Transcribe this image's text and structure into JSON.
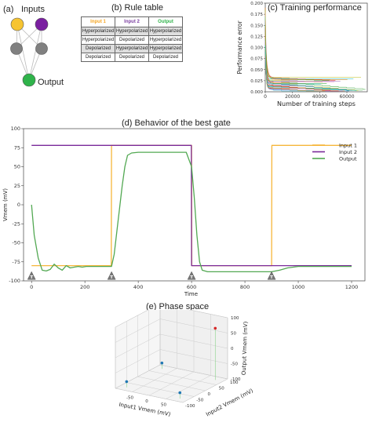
{
  "panels": {
    "a": {
      "label": "(a)",
      "inputs_label": "Inputs",
      "output_label": "Output",
      "colors": {
        "input1": "#f6c431",
        "input2": "#7a1fa0",
        "hidden": "#808080",
        "output": "#2fb34a"
      }
    },
    "b": {
      "label": "(b) Rule table",
      "headers": [
        "Input 1",
        "Input 2",
        "Output"
      ],
      "header_colors": [
        "#f5a623",
        "#7b3fa0",
        "#2fb34a"
      ],
      "rows": [
        [
          "Hyperpolarized",
          "Hyperpolarized",
          "Hyperpolarized"
        ],
        [
          "Hyperpolarized",
          "Depolarized",
          "Hyperpolarized"
        ],
        [
          "Depolarized",
          "Hyperpolarized",
          "Hyperpolarized"
        ],
        [
          "Depolarized",
          "Depolarized",
          "Depolarized"
        ]
      ]
    },
    "c": {
      "label": "(c) Training performance"
    },
    "d": {
      "label": "(d) Behavior of the best gate"
    },
    "e": {
      "label": "(e) Phase space"
    }
  },
  "chart_data": [
    {
      "id": "training",
      "type": "line",
      "xlabel": "Number of training steps",
      "ylabel": "Performance error",
      "xlim": [
        0,
        75000
      ],
      "ylim": [
        0,
        0.2
      ],
      "xticks": [
        0,
        20000,
        40000,
        60000
      ],
      "yticks": [
        0.0,
        0.025,
        0.05,
        0.075,
        0.1,
        0.125,
        0.15,
        0.175,
        0.2
      ],
      "series_colors": [
        "#e377c2",
        "#2ca02c",
        "#bcbd22",
        "#17becf",
        "#1f77b4",
        "#ff7f0e",
        "#9467bd",
        "#d62728"
      ]
    },
    {
      "id": "behavior",
      "type": "line",
      "xlabel": "Time",
      "ylabel": "Vmem (mV)",
      "xlim": [
        -30,
        1250
      ],
      "ylim": [
        -100,
        100
      ],
      "xticks": [
        0,
        200,
        400,
        600,
        800,
        1000,
        1200
      ],
      "yticks": [
        -100,
        -75,
        -50,
        -25,
        0,
        25,
        50,
        75,
        100
      ],
      "legend_position": "right",
      "event_markers": [
        0,
        300,
        600,
        900
      ],
      "event_label": "T",
      "series": [
        {
          "name": "Input 1",
          "color": "#f6b63a",
          "x": [
            0,
            299,
            300,
            600,
            601,
            900,
            901,
            1200
          ],
          "y": [
            -80,
            -80,
            78,
            78,
            -80,
            -80,
            78,
            78
          ]
        },
        {
          "name": "Input 2",
          "color": "#7a2a9a",
          "x": [
            0,
            599,
            600,
            1200
          ],
          "y": [
            78,
            78,
            -80,
            -80
          ]
        },
        {
          "name": "Output",
          "color": "#52a852",
          "x": [
            0,
            10,
            25,
            40,
            55,
            70,
            85,
            100,
            115,
            130,
            145,
            160,
            175,
            190,
            205,
            220,
            240,
            260,
            280,
            300,
            310,
            320,
            330,
            340,
            350,
            360,
            375,
            400,
            500,
            580,
            600,
            610,
            620,
            630,
            640,
            660,
            700,
            900,
            930,
            960,
            1000,
            1200
          ],
          "y": [
            0,
            -40,
            -70,
            -86,
            -87,
            -85,
            -78,
            -83,
            -86,
            -80,
            -83,
            -82,
            -81,
            -82,
            -81,
            -81,
            -81,
            -81,
            -81,
            -81,
            -65,
            -35,
            -5,
            25,
            50,
            65,
            68,
            69,
            69,
            69,
            50,
            10,
            -40,
            -75,
            -86,
            -88,
            -88,
            -88,
            -86,
            -83,
            -81,
            -81
          ]
        }
      ]
    },
    {
      "id": "phase",
      "type": "scatter",
      "xlabel": "Input1 Vmem (mV)",
      "ylabel": "Input2 Vmem (mV)",
      "zlabel": "Output Vmem (mV)",
      "xlim": [
        -100,
        100
      ],
      "ylim": [
        -100,
        100
      ],
      "zlim": [
        -100,
        100
      ],
      "xticks": [
        -50,
        0,
        50
      ],
      "yticks": [
        -100,
        -50,
        0,
        50,
        100
      ],
      "zticks": [
        -100,
        -50,
        0,
        50,
        100
      ],
      "points": [
        {
          "x": -80,
          "y": -80,
          "z": -81,
          "color": "#1f77b4"
        },
        {
          "x": -80,
          "y": 78,
          "z": -81,
          "color": "#1f77b4"
        },
        {
          "x": 78,
          "y": -80,
          "z": -81,
          "color": "#1f77b4"
        },
        {
          "x": 78,
          "y": 78,
          "z": 69,
          "color": "#d62728"
        }
      ]
    }
  ]
}
